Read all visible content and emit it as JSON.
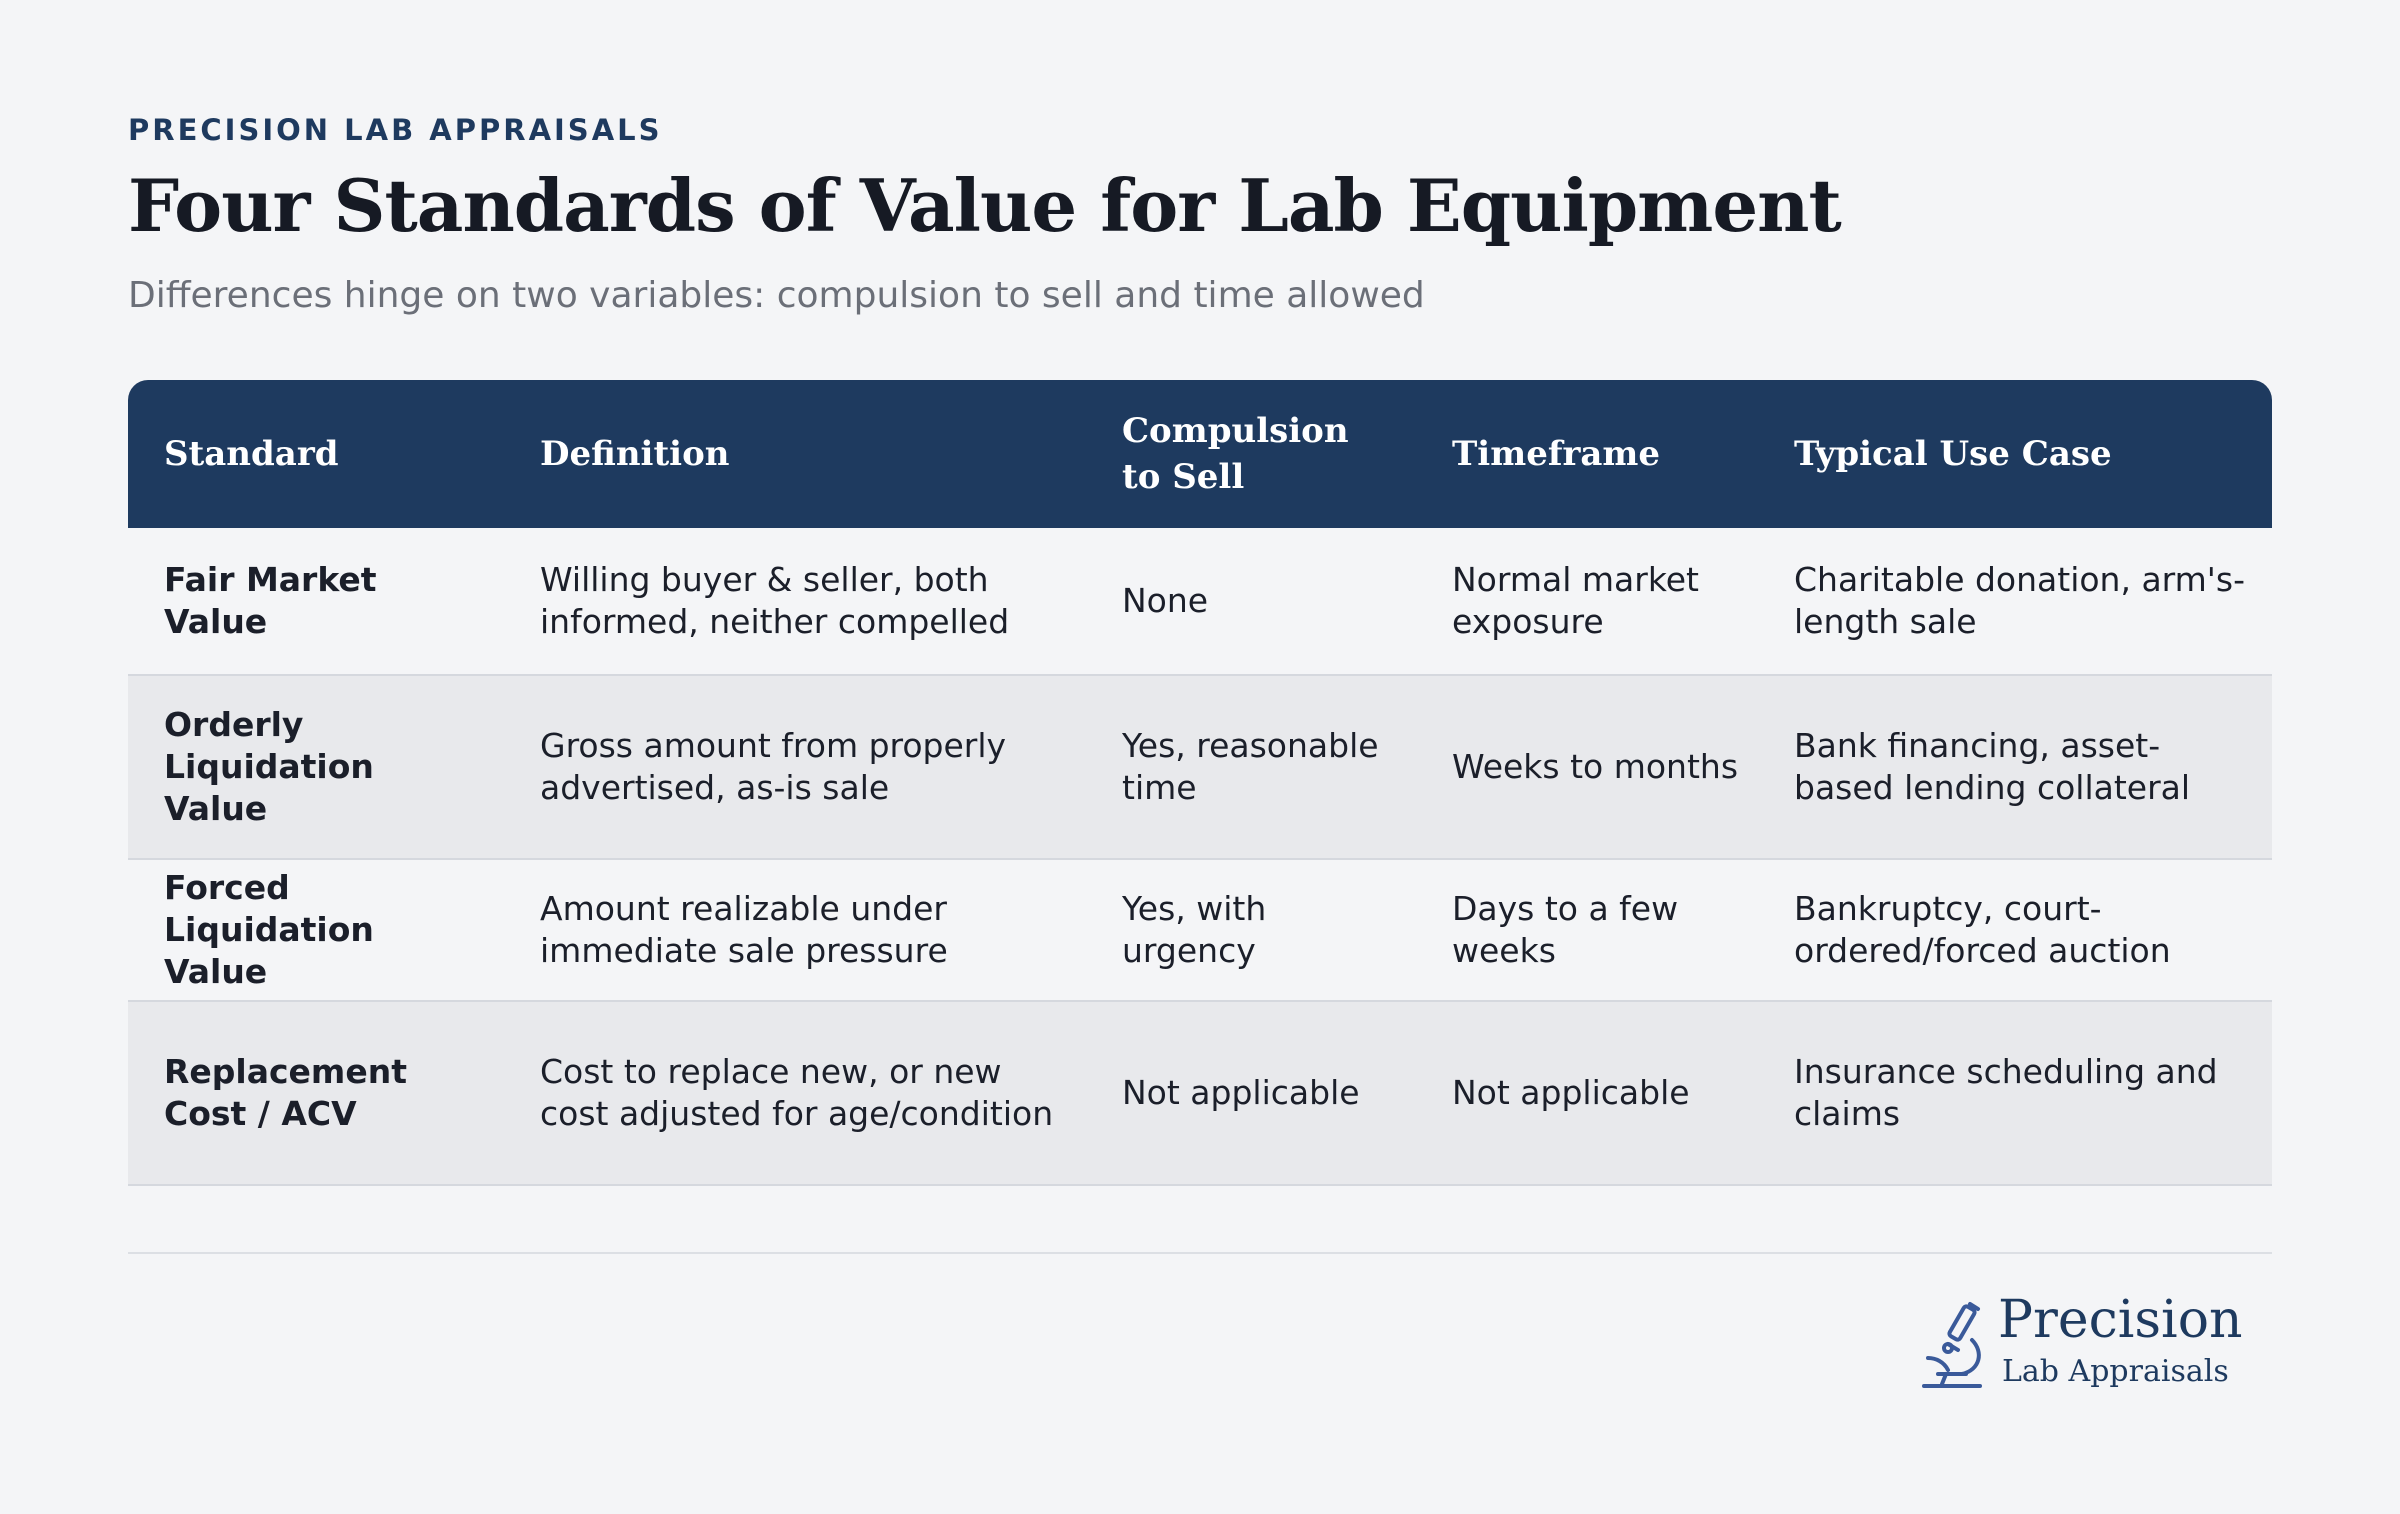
{
  "header": {
    "eyebrow": "PRECISION LAB APPRAISALS",
    "title": "Four Standards of Value for Lab Equipment",
    "subtitle": "Differences hinge on two variables: compulsion to sell and time allowed"
  },
  "table": {
    "columns": [
      "Standard",
      "Definition",
      "Compulsion to Sell",
      "Timeframe",
      "Typical Use Case"
    ],
    "rows": [
      {
        "standard": "Fair Market Value",
        "definition": "Willing buyer & seller, both informed, neither compelled",
        "compulsion": "None",
        "timeframe": "Normal market exposure",
        "use_case": "Charitable donation, arm's-length sale"
      },
      {
        "standard": "Orderly Liquidation Value",
        "definition": "Gross amount from properly advertised, as-is sale",
        "compulsion": "Yes, reasonable time",
        "timeframe": "Weeks to months",
        "use_case": "Bank financing, asset-based lending collateral"
      },
      {
        "standard": "Forced Liquidation Value",
        "definition": "Amount realizable under immediate sale pressure",
        "compulsion": "Yes, with urgency",
        "timeframe": "Days to a few weeks",
        "use_case": "Bankruptcy, court-ordered/forced auction"
      },
      {
        "standard": "Replacement Cost / ACV",
        "definition": "Cost to replace new, or new cost adjusted for age/condition",
        "compulsion": "Not applicable",
        "timeframe": "Not applicable",
        "use_case": "Insurance scheduling and claims"
      }
    ]
  },
  "logo": {
    "name": "Precision",
    "sub": "Lab Appraisals",
    "icon": "microscope-icon"
  },
  "colors": {
    "brand": "#1e3a5f",
    "background": "#f4f5f7",
    "row_alt": "#e8e9ec"
  }
}
